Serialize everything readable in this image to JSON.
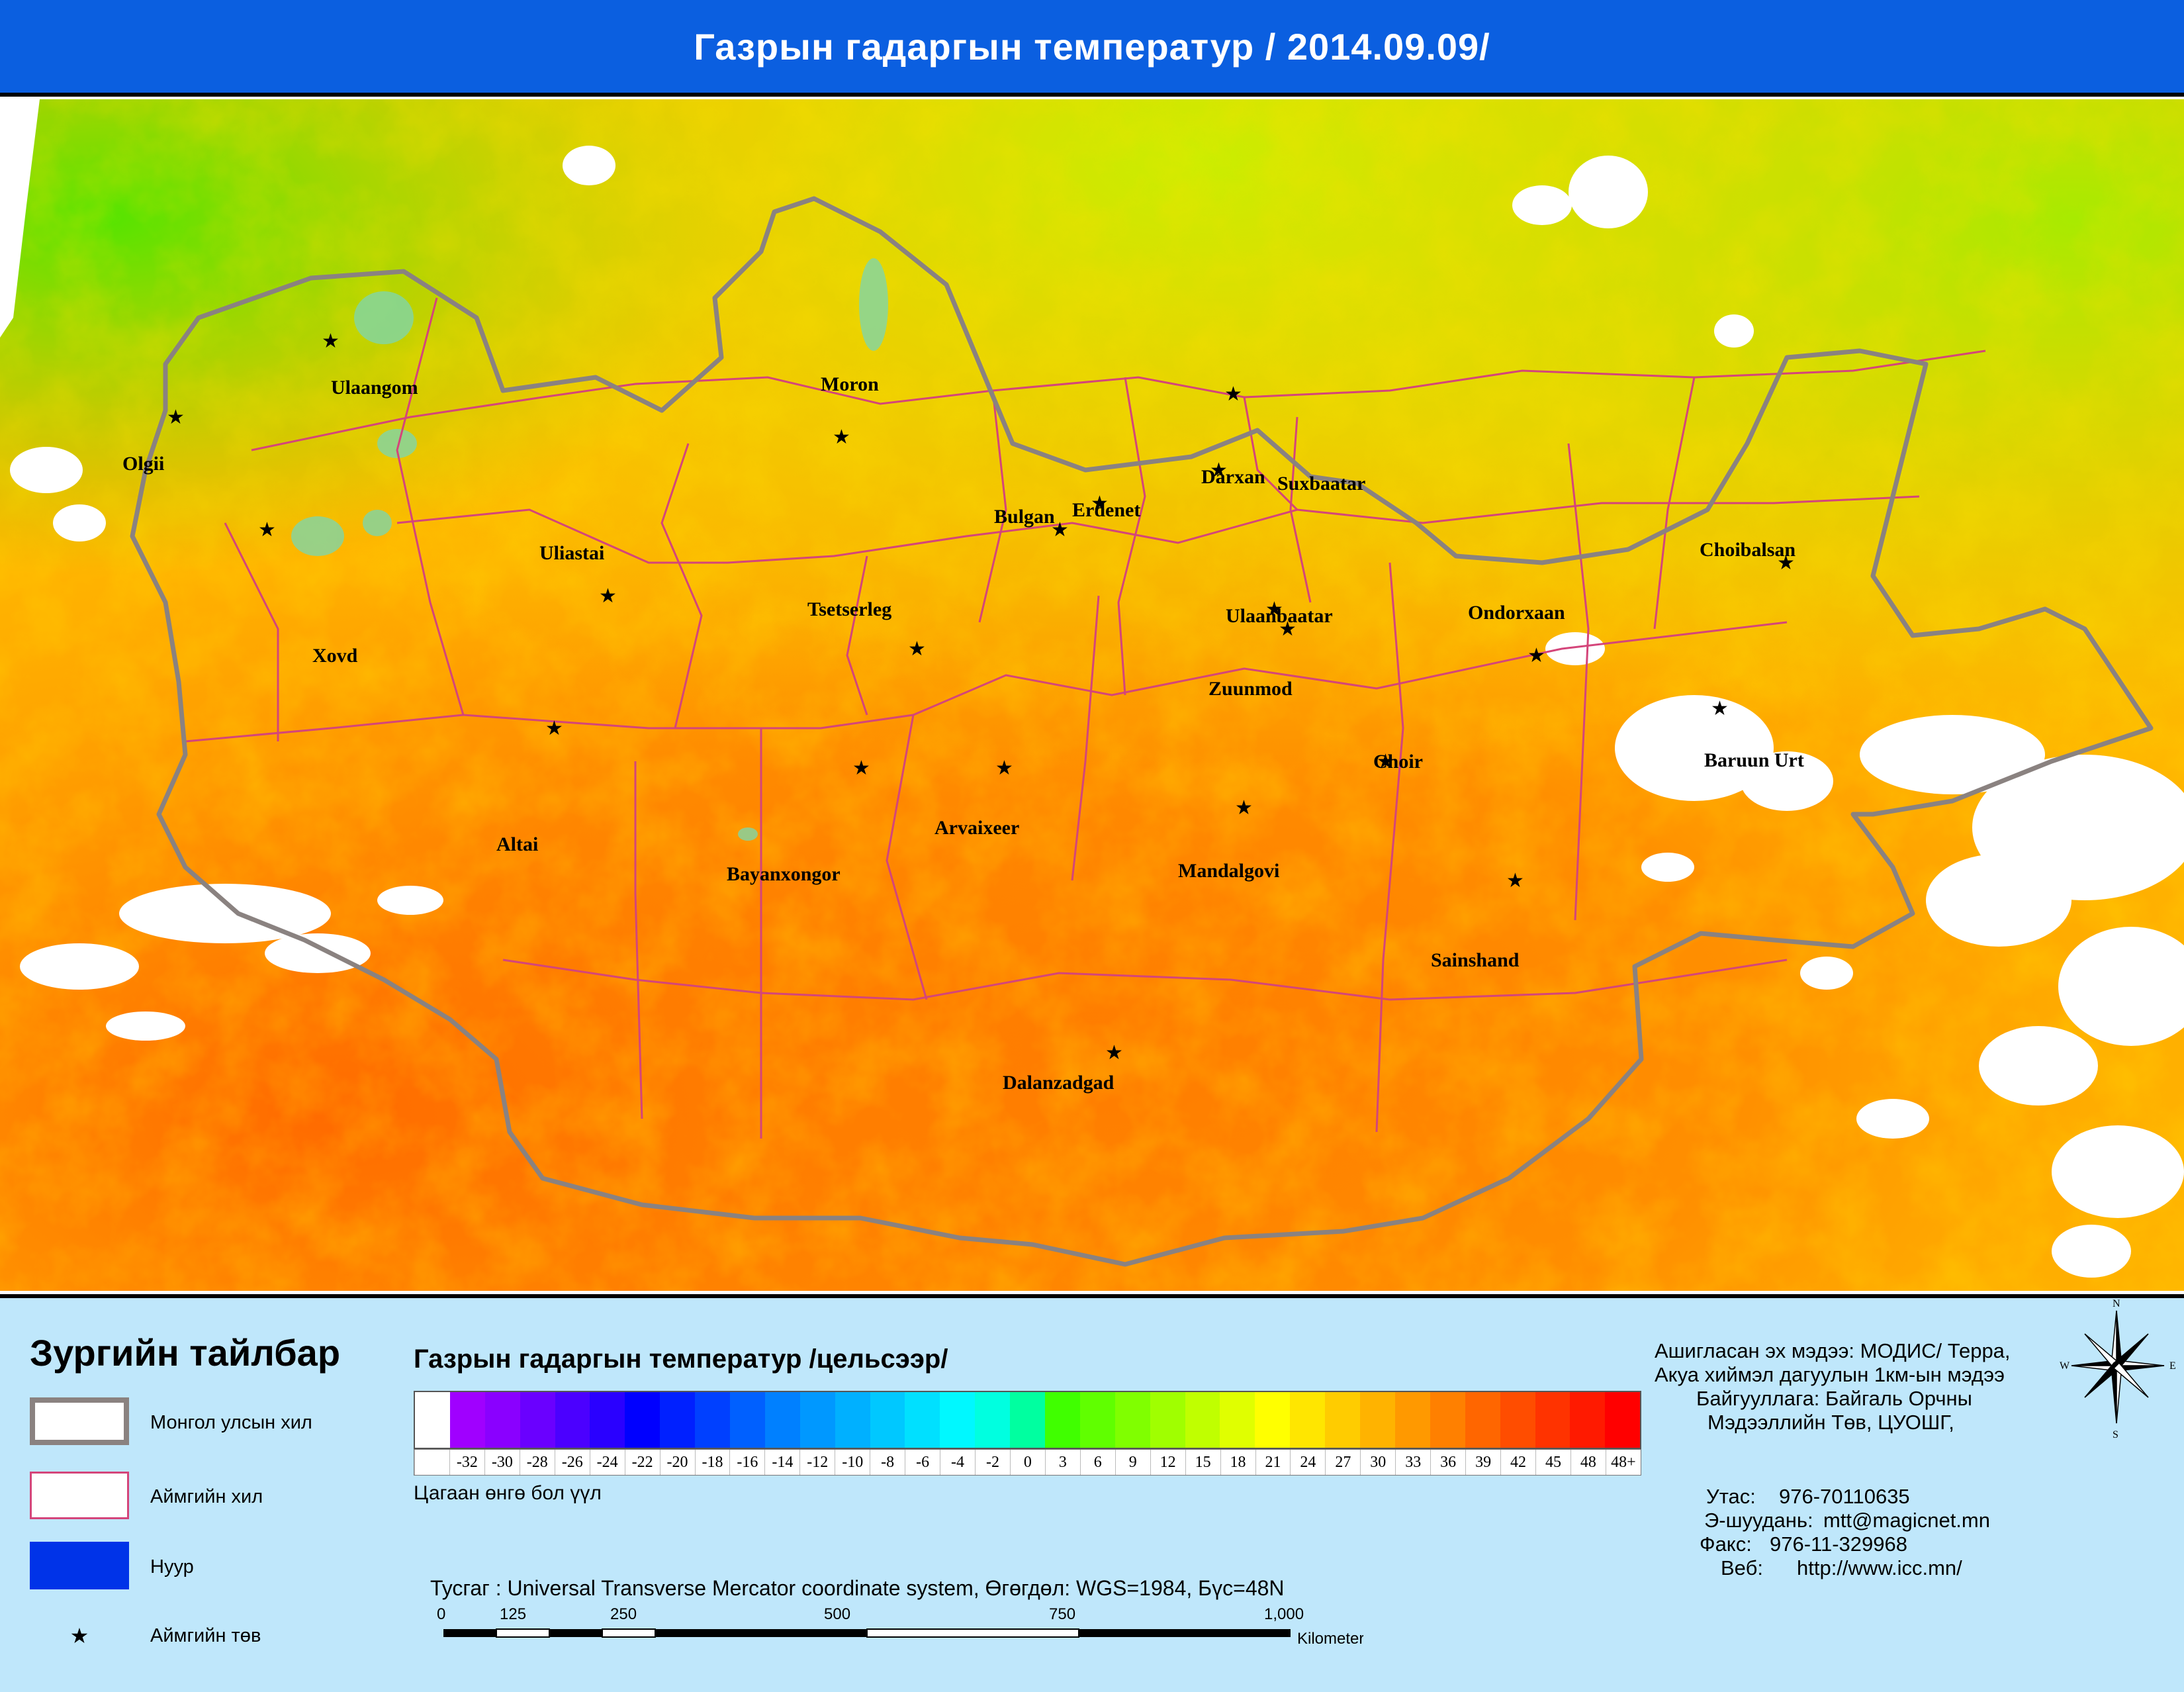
{
  "title": "Газрын гадаргын температур / 2014.09.09/",
  "cities": [
    {
      "name": "Ulaangom"
    },
    {
      "name": "Olgii"
    },
    {
      "name": "Moron"
    },
    {
      "name": "Darxan"
    },
    {
      "name": "Suxbaatar"
    },
    {
      "name": "Erdenet"
    },
    {
      "name": "Bulgan"
    },
    {
      "name": "Uliastai"
    },
    {
      "name": "Choibalsan"
    },
    {
      "name": "Tsetserleg"
    },
    {
      "name": "Ulaanbaatar"
    },
    {
      "name": "Ondorxaan"
    },
    {
      "name": "Xovd"
    },
    {
      "name": "Zuunmod"
    },
    {
      "name": "Choir"
    },
    {
      "name": "Baruun Urt"
    },
    {
      "name": "Arvaixeer"
    },
    {
      "name": "Altai"
    },
    {
      "name": "Bayanxongor"
    },
    {
      "name": "Mandalgovi"
    },
    {
      "name": "Sainshand"
    },
    {
      "name": "Dalanzadgad"
    }
  ],
  "legend": {
    "heading": "Зургийн тайлбар",
    "border_country": "Монгол улсын хил",
    "border_aimag": "Аймгийн хил",
    "lake": "Нуур",
    "aimag_center": "Аймгийн төв"
  },
  "scale": {
    "title": "Газрын гадаргын температур /цельсээр/",
    "ticks": [
      "",
      "-32",
      "-30",
      "-28",
      "-26",
      "-24",
      "-22",
      "-20",
      "-18",
      "-16",
      "-14",
      "-12",
      "-10",
      "-8",
      "-6",
      "-4",
      "-2",
      "0",
      "3",
      "6",
      "9",
      "12",
      "15",
      "18",
      "21",
      "24",
      "27",
      "30",
      "33",
      "36",
      "39",
      "42",
      "45",
      "48",
      "48+"
    ],
    "colors": [
      "#ffffff",
      "#a000ff",
      "#8a00ff",
      "#6a00ff",
      "#4b00ff",
      "#2a00ff",
      "#0000ff",
      "#0020ff",
      "#0040ff",
      "#0060ff",
      "#0080ff",
      "#0098ff",
      "#00b0ff",
      "#00c8ff",
      "#00e0ff",
      "#00f8ff",
      "#00ffe0",
      "#00ffa0",
      "#40ff00",
      "#60ff00",
      "#80ff00",
      "#a0ff00",
      "#c0ff00",
      "#e0ff00",
      "#ffff00",
      "#ffe600",
      "#ffcc00",
      "#ffb300",
      "#ff9900",
      "#ff8000",
      "#ff6600",
      "#ff4d00",
      "#ff3300",
      "#ff1a00",
      "#ff0000"
    ],
    "white_note": "Цагаан өнгө бол үүл"
  },
  "projection": "Тусгаг : Universal Transverse Mercator coordinate system, Өгөгдөл: WGS=1984, Бүс=48N",
  "scalebar": {
    "labels": [
      "0",
      "125",
      "250",
      "500",
      "750",
      "1,000"
    ],
    "unit": "Kilometers"
  },
  "info": {
    "source": "Ашигласан эх мэдээ: МОДИС/ Терра,",
    "resolution": "Акуа хиймэл дагуулын 1км-ын мэдээ",
    "org1": "Байгууллага: Байгаль Орчны",
    "org2": "Мэдээллийн Төв, ЦУОШГ,",
    "phone_label": "Утас:",
    "phone": "976-70110635",
    "email_label": "Э-шуудань:",
    "email": "mtt@magicnet.mn",
    "fax_label": "Факс:",
    "fax": "976-11-329968",
    "web_label": "Веб:",
    "web": "http://www.icc.mn/"
  },
  "compass": {
    "n": "N",
    "s": "S",
    "e": "E",
    "w": "W"
  }
}
